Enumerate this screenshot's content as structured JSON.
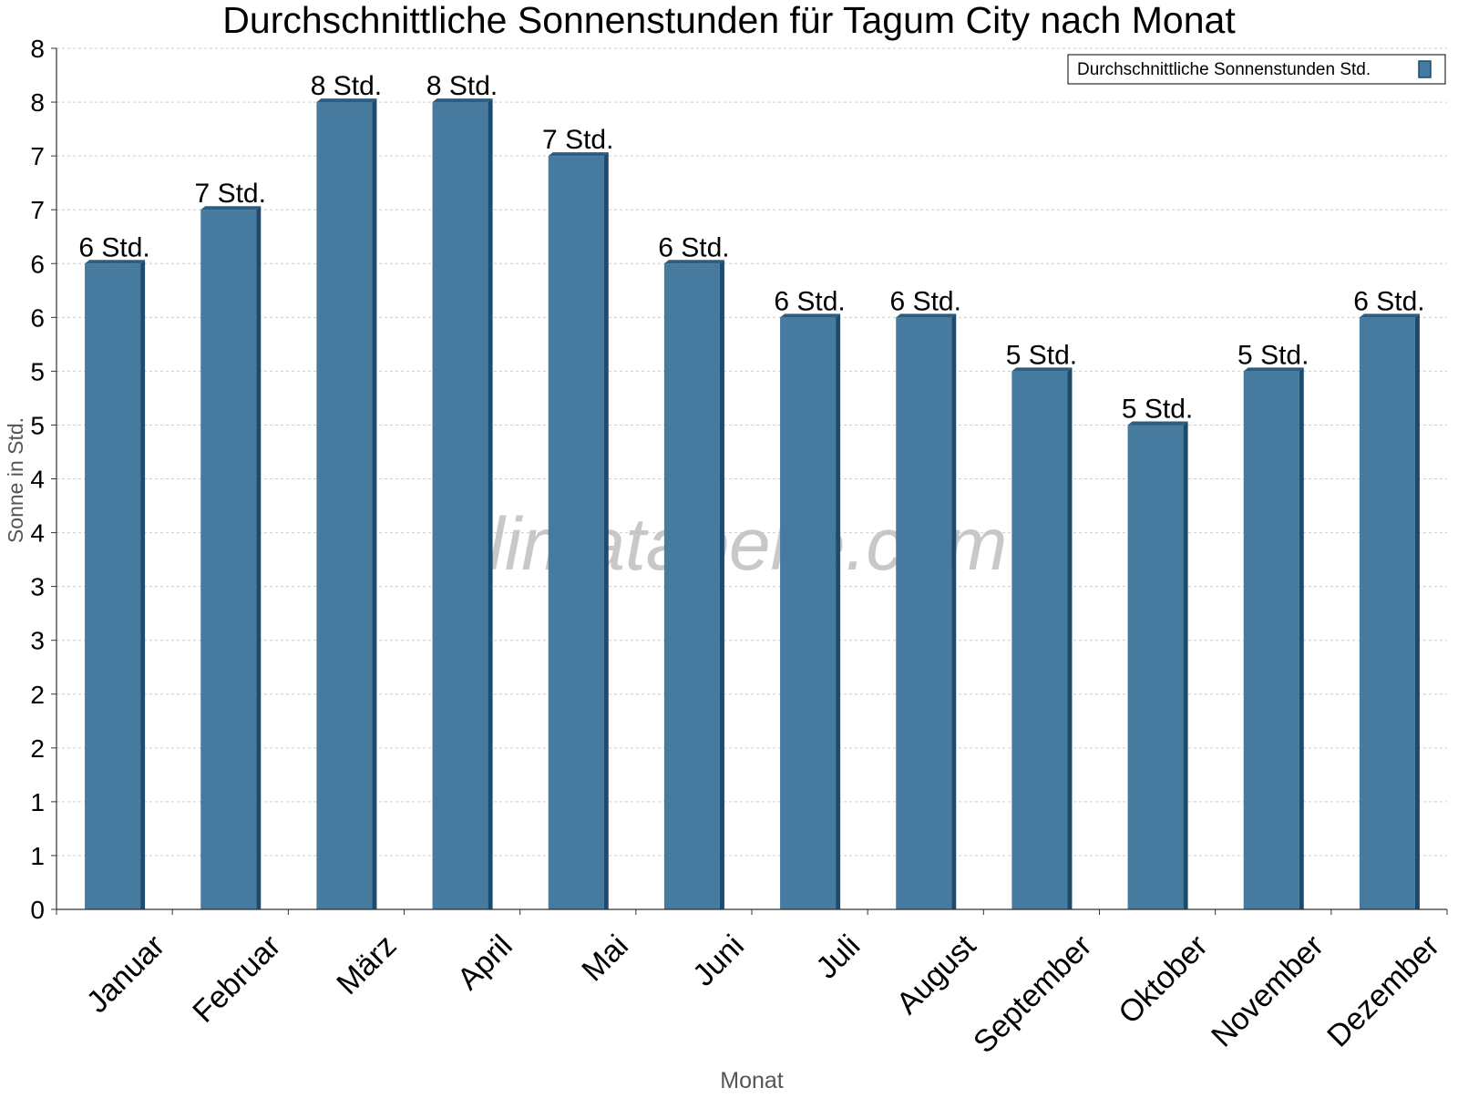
{
  "chart_data": {
    "type": "bar",
    "title": "Durchschnittliche Sonnenstunden für Tagum City nach Monat",
    "xlabel": "Monat",
    "ylabel": "Sonne in Std.",
    "categories": [
      "Januar",
      "Februar",
      "März",
      "April",
      "Mai",
      "Juni",
      "Juli",
      "August",
      "September",
      "Oktober",
      "November",
      "Dezember"
    ],
    "series": [
      {
        "name": "Durchschnittliche Sonnenstunden Std.",
        "values": [
          6.0,
          6.5,
          7.5,
          7.5,
          7.0,
          6.0,
          5.5,
          5.5,
          5.0,
          4.5,
          5.0,
          5.5
        ],
        "data_labels": [
          "6 Std.",
          "7 Std.",
          "8 Std.",
          "8 Std.",
          "7 Std.",
          "6 Std.",
          "6 Std.",
          "6 Std.",
          "5 Std.",
          "5 Std.",
          "5 Std.",
          "6 Std."
        ]
      }
    ],
    "ylim": [
      0,
      8
    ],
    "yticks": [
      0,
      0.5,
      1,
      1.5,
      2,
      2.5,
      3,
      3.5,
      4,
      4.5,
      5,
      5.5,
      6,
      6.5,
      7,
      7.5,
      8
    ],
    "ytick_labels": [
      "0",
      "1",
      "1",
      "2",
      "2",
      "3",
      "3",
      "4",
      "4",
      "5",
      "5",
      "6",
      "6",
      "7",
      "7",
      "8",
      "8"
    ],
    "grid": true,
    "legend_position": "top-right",
    "watermark": "klimatabelle.com",
    "colors": {
      "bar": "#467b9f",
      "bar_side": "#1c4b6e",
      "bar_top": "#2f5d80",
      "watermark": "#bfbfbf",
      "grid": "#cccccc"
    }
  }
}
